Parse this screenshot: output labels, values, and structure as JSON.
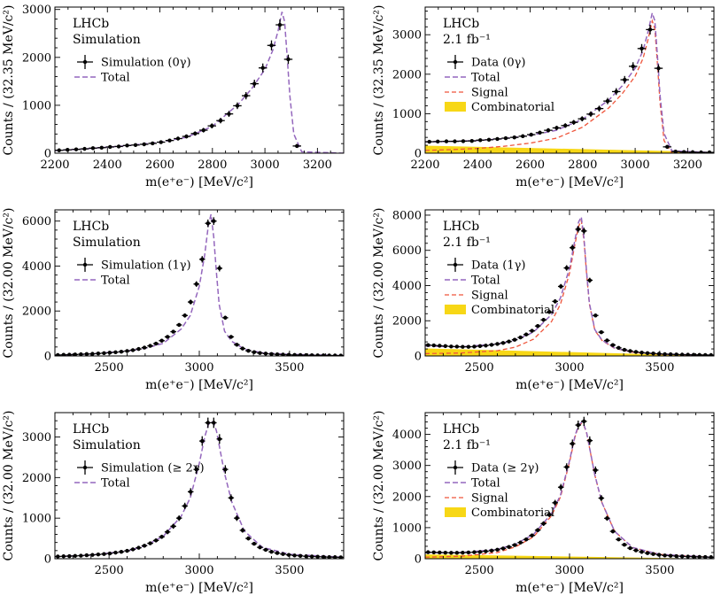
{
  "chart_data": [
    {
      "type": "scatter",
      "panel": "simulation-0gamma",
      "lhcb_label": "LHCb",
      "sub_label": "Simulation",
      "xlabel": "m(e⁺e⁻) [MeV/c²]",
      "ylabel": "Counts / (32.35 MeV/c²)",
      "xlim": [
        2200,
        3300
      ],
      "ylim": [
        0,
        3050
      ],
      "xticks": [
        2200,
        2400,
        2600,
        2800,
        3000,
        3200
      ],
      "yticks": [
        0,
        1000,
        2000,
        3000
      ],
      "legend": {
        "points": "Simulation (0γ)",
        "total": "Total"
      },
      "points": {
        "x": [
          2216,
          2248,
          2281,
          2313,
          2345,
          2378,
          2410,
          2443,
          2475,
          2507,
          2540,
          2572,
          2604,
          2637,
          2669,
          2701,
          2734,
          2766,
          2798,
          2831,
          2863,
          2895,
          2928,
          2960,
          2992,
          3025,
          3057,
          3089,
          3122
        ],
        "y": [
          60,
          70,
          80,
          90,
          105,
          115,
          130,
          140,
          160,
          170,
          185,
          205,
          230,
          265,
          305,
          350,
          410,
          480,
          570,
          680,
          820,
          990,
          1200,
          1450,
          1780,
          2250,
          2680,
          1960,
          150
        ]
      },
      "total": {
        "x": [
          2200,
          2300,
          2400,
          2500,
          2600,
          2700,
          2800,
          2900,
          2950,
          3000,
          3030,
          3050,
          3065,
          3075,
          3085,
          3095,
          3110,
          3140,
          3300
        ],
        "y": [
          55,
          85,
          125,
          170,
          230,
          330,
          560,
          1030,
          1350,
          1750,
          2150,
          2550,
          2950,
          2750,
          2000,
          1200,
          400,
          30,
          0
        ]
      }
    },
    {
      "type": "scatter",
      "panel": "data-0gamma",
      "lhcb_label": "LHCb",
      "sub_label": "2.1 fb⁻¹",
      "xlabel": "m(e⁺e⁻) [MeV/c²]",
      "ylabel": "Counts / (32.35 MeV/c²)",
      "xlim": [
        2200,
        3300
      ],
      "ylim": [
        0,
        3700
      ],
      "xticks": [
        2200,
        2400,
        2600,
        2800,
        3000,
        3200
      ],
      "yticks": [
        0,
        1000,
        2000,
        3000
      ],
      "legend": {
        "points": "Data (0γ)",
        "total": "Total",
        "signal": "Signal",
        "combinatorial": "Combinatorial"
      },
      "points": {
        "x": [
          2216,
          2248,
          2281,
          2313,
          2345,
          2378,
          2410,
          2443,
          2475,
          2507,
          2540,
          2572,
          2604,
          2637,
          2669,
          2701,
          2734,
          2766,
          2798,
          2831,
          2863,
          2895,
          2928,
          2960,
          2992,
          3025,
          3057,
          3089,
          3122,
          3154,
          3186,
          3219,
          3251,
          3283
        ],
        "y": [
          290,
          295,
          300,
          300,
          305,
          310,
          330,
          340,
          360,
          380,
          400,
          430,
          470,
          520,
          580,
          640,
          700,
          780,
          870,
          990,
          1130,
          1320,
          1560,
          1860,
          2200,
          2650,
          3130,
          2150,
          160,
          40,
          30,
          25,
          20,
          20
        ]
      },
      "total": {
        "x": [
          2200,
          2300,
          2400,
          2500,
          2600,
          2700,
          2800,
          2900,
          2950,
          3000,
          3030,
          3050,
          3065,
          3075,
          3085,
          3095,
          3110,
          3140,
          3300
        ],
        "y": [
          285,
          300,
          320,
          370,
          450,
          580,
          860,
          1350,
          1700,
          2150,
          2600,
          3100,
          3550,
          3350,
          2450,
          1450,
          500,
          60,
          15
        ]
      },
      "signal": {
        "x": [
          2200,
          2300,
          2400,
          2500,
          2600,
          2700,
          2800,
          2900,
          2950,
          3000,
          3030,
          3050,
          3065,
          3075,
          3085,
          3095,
          3110,
          3140,
          3300
        ],
        "y": [
          70,
          90,
          120,
          175,
          255,
          380,
          660,
          1150,
          1500,
          1950,
          2400,
          2900,
          3350,
          3150,
          2250,
          1260,
          320,
          0,
          0
        ]
      },
      "combinatorial": {
        "x": [
          2200,
          3300
        ],
        "y": [
          190,
          30
        ]
      }
    },
    {
      "type": "scatter",
      "panel": "simulation-1gamma",
      "lhcb_label": "LHCb",
      "sub_label": "Simulation",
      "xlabel": "m(e⁺e⁻) [MeV/c²]",
      "ylabel": "Counts / (32.00 MeV/c²)",
      "xlim": [
        2200,
        3800
      ],
      "ylim": [
        0,
        6500
      ],
      "xticks": [
        2500,
        3000,
        3500
      ],
      "yticks": [
        0,
        2000,
        4000,
        6000
      ],
      "legend": {
        "points": "Simulation (1γ)",
        "total": "Total"
      },
      "points": {
        "x": [
          2216,
          2248,
          2280,
          2312,
          2344,
          2376,
          2408,
          2440,
          2472,
          2504,
          2536,
          2568,
          2600,
          2632,
          2664,
          2696,
          2728,
          2760,
          2792,
          2824,
          2856,
          2888,
          2920,
          2952,
          2984,
          3016,
          3048,
          3080,
          3112,
          3144,
          3176,
          3208,
          3240,
          3272,
          3304,
          3336,
          3368,
          3400,
          3432,
          3464,
          3496,
          3528,
          3560,
          3592,
          3624,
          3656,
          3688,
          3720,
          3752,
          3784
        ],
        "y": [
          40,
          50,
          55,
          65,
          75,
          85,
          95,
          110,
          125,
          145,
          165,
          190,
          220,
          260,
          310,
          370,
          450,
          550,
          680,
          850,
          1080,
          1380,
          1800,
          2400,
          3200,
          4300,
          5900,
          6000,
          3900,
          1700,
          850,
          500,
          330,
          230,
          170,
          130,
          105,
          85,
          70,
          60,
          50,
          45,
          40,
          35,
          30,
          28,
          25,
          22,
          20,
          18
        ]
      },
      "total": {
        "x": [
          2200,
          2400,
          2600,
          2700,
          2800,
          2900,
          2950,
          3000,
          3030,
          3050,
          3065,
          3080,
          3095,
          3110,
          3140,
          3180,
          3250,
          3350,
          3500,
          3800
        ],
        "y": [
          35,
          90,
          220,
          340,
          560,
          1200,
          1800,
          3100,
          4500,
          5800,
          6300,
          5300,
          3700,
          2300,
          1100,
          650,
          300,
          140,
          70,
          20
        ]
      }
    },
    {
      "type": "scatter",
      "panel": "data-1gamma",
      "lhcb_label": "LHCb",
      "sub_label": "2.1 fb⁻¹",
      "xlabel": "m(e⁺e⁻) [MeV/c²]",
      "ylabel": "Counts / (32.00 MeV/c²)",
      "xlim": [
        2200,
        3800
      ],
      "ylim": [
        0,
        8300
      ],
      "xticks": [
        2500,
        3000,
        3500
      ],
      "yticks": [
        0,
        2000,
        4000,
        6000,
        8000
      ],
      "legend": {
        "points": "Data (1γ)",
        "total": "Total",
        "signal": "Signal",
        "combinatorial": "Combinatorial"
      },
      "points": {
        "x": [
          2216,
          2248,
          2280,
          2312,
          2344,
          2376,
          2408,
          2440,
          2472,
          2504,
          2536,
          2568,
          2600,
          2632,
          2664,
          2696,
          2728,
          2760,
          2792,
          2824,
          2856,
          2888,
          2920,
          2952,
          2984,
          3016,
          3048,
          3080,
          3112,
          3144,
          3176,
          3208,
          3240,
          3272,
          3304,
          3336,
          3368,
          3400,
          3432,
          3464,
          3496,
          3528,
          3560,
          3592,
          3624,
          3656,
          3688,
          3720,
          3752,
          3784
        ],
        "y": [
          620,
          600,
          580,
          560,
          540,
          530,
          520,
          520,
          530,
          560,
          590,
          630,
          680,
          740,
          820,
          920,
          1050,
          1220,
          1430,
          1700,
          2050,
          2500,
          3100,
          3950,
          5000,
          6150,
          7200,
          7100,
          4300,
          2300,
          1350,
          880,
          620,
          460,
          350,
          280,
          230,
          190,
          160,
          140,
          120,
          105,
          95,
          85,
          75,
          70,
          65,
          60,
          55,
          50
        ]
      },
      "total": {
        "x": [
          2200,
          2400,
          2600,
          2700,
          2800,
          2900,
          2950,
          3000,
          3030,
          3050,
          3065,
          3080,
          3095,
          3110,
          3140,
          3180,
          3250,
          3350,
          3500,
          3800
        ],
        "y": [
          560,
          520,
          680,
          900,
          1350,
          2350,
          3300,
          5000,
          6600,
          7600,
          7900,
          6700,
          4700,
          3000,
          1500,
          900,
          450,
          220,
          110,
          40
        ]
      },
      "signal": {
        "x": [
          2200,
          2400,
          2600,
          2700,
          2800,
          2900,
          2950,
          3000,
          3030,
          3050,
          3065,
          3080,
          3095,
          3110,
          3140,
          3180,
          3250,
          3350,
          3500,
          3800
        ],
        "y": [
          130,
          170,
          300,
          500,
          950,
          1950,
          2950,
          4700,
          6350,
          7350,
          7700,
          6550,
          4600,
          2950,
          1460,
          880,
          430,
          210,
          100,
          35
        ]
      },
      "combinatorial": {
        "x": [
          2200,
          3800
        ],
        "y": [
          430,
          10
        ]
      }
    },
    {
      "type": "scatter",
      "panel": "simulation-ge2gamma",
      "lhcb_label": "LHCb",
      "sub_label": "Simulation",
      "xlabel": "m(e⁺e⁻) [MeV/c²]",
      "ylabel": "Counts / (32.00 MeV/c²)",
      "xlim": [
        2200,
        3800
      ],
      "ylim": [
        0,
        3600
      ],
      "xticks": [
        2500,
        3000,
        3500
      ],
      "yticks": [
        0,
        1000,
        2000,
        3000
      ],
      "legend": {
        "points": "Simulation (≥ 2γ)",
        "total": "Total"
      },
      "points": {
        "x": [
          2216,
          2248,
          2280,
          2312,
          2344,
          2376,
          2408,
          2440,
          2472,
          2504,
          2536,
          2568,
          2600,
          2632,
          2664,
          2696,
          2728,
          2760,
          2792,
          2824,
          2856,
          2888,
          2920,
          2952,
          2984,
          3016,
          3048,
          3080,
          3112,
          3144,
          3176,
          3208,
          3240,
          3272,
          3304,
          3336,
          3368,
          3400,
          3432,
          3464,
          3496,
          3528,
          3560,
          3592,
          3624,
          3656,
          3688,
          3720,
          3752,
          3784
        ],
        "y": [
          55,
          60,
          65,
          70,
          75,
          85,
          95,
          105,
          115,
          130,
          150,
          170,
          195,
          230,
          270,
          320,
          380,
          450,
          540,
          660,
          800,
          1000,
          1300,
          1650,
          2200,
          2900,
          3350,
          3350,
          2950,
          2200,
          1500,
          1000,
          700,
          500,
          370,
          280,
          220,
          170,
          140,
          115,
          95,
          80,
          70,
          60,
          55,
          50,
          45,
          40,
          38,
          35
        ]
      },
      "total": {
        "x": [
          2200,
          2400,
          2600,
          2700,
          2800,
          2900,
          2950,
          3000,
          3030,
          3050,
          3065,
          3080,
          3095,
          3110,
          3140,
          3180,
          3250,
          3350,
          3500,
          3800
        ],
        "y": [
          50,
          90,
          190,
          320,
          550,
          1050,
          1500,
          2350,
          3000,
          3300,
          3380,
          3350,
          3150,
          2800,
          2100,
          1400,
          680,
          280,
          110,
          35
        ]
      }
    },
    {
      "type": "scatter",
      "panel": "data-ge2gamma",
      "lhcb_label": "LHCb",
      "sub_label": "2.1 fb⁻¹",
      "xlabel": "m(e⁺e⁻) [MeV/c²]",
      "ylabel": "Counts / (32.00 MeV/c²)",
      "xlim": [
        2200,
        3800
      ],
      "ylim": [
        0,
        4700
      ],
      "xticks": [
        2500,
        3000,
        3500
      ],
      "yticks": [
        0,
        1000,
        2000,
        3000,
        4000
      ],
      "legend": {
        "points": "Data (≥ 2γ)",
        "total": "Total",
        "signal": "Signal",
        "combinatorial": "Combinatorial"
      },
      "points": {
        "x": [
          2216,
          2248,
          2280,
          2312,
          2344,
          2376,
          2408,
          2440,
          2472,
          2504,
          2536,
          2568,
          2600,
          2632,
          2664,
          2696,
          2728,
          2760,
          2792,
          2824,
          2856,
          2888,
          2920,
          2952,
          2984,
          3016,
          3048,
          3080,
          3112,
          3144,
          3176,
          3208,
          3240,
          3272,
          3304,
          3336,
          3368,
          3400,
          3432,
          3464,
          3496,
          3528,
          3560,
          3592,
          3624,
          3656,
          3688,
          3720,
          3752,
          3784
        ],
        "y": [
          210,
          205,
          200,
          195,
          190,
          190,
          195,
          200,
          210,
          220,
          240,
          260,
          290,
          330,
          380,
          440,
          520,
          620,
          750,
          920,
          1130,
          1420,
          1800,
          2300,
          2950,
          3700,
          4300,
          4420,
          3800,
          2850,
          1950,
          1300,
          880,
          620,
          450,
          340,
          270,
          220,
          180,
          150,
          125,
          105,
          95,
          85,
          75,
          70,
          65,
          60,
          55,
          50
        ]
      },
      "total": {
        "x": [
          2200,
          2400,
          2600,
          2700,
          2800,
          2900,
          2950,
          3000,
          3030,
          3050,
          3065,
          3080,
          3095,
          3110,
          3140,
          3180,
          3250,
          3350,
          3500,
          3800
        ],
        "y": [
          190,
          200,
          300,
          470,
          780,
          1450,
          2050,
          3150,
          3950,
          4300,
          4380,
          4300,
          4050,
          3600,
          2700,
          1800,
          880,
          360,
          140,
          45
        ]
      },
      "signal": {
        "x": [
          2200,
          2400,
          2600,
          2700,
          2800,
          2900,
          2950,
          3000,
          3030,
          3050,
          3065,
          3080,
          3095,
          3110,
          3140,
          3180,
          3250,
          3350,
          3500,
          3800
        ],
        "y": [
          50,
          80,
          200,
          380,
          700,
          1380,
          1990,
          3100,
          3910,
          4270,
          4350,
          4280,
          4030,
          3590,
          2690,
          1795,
          878,
          358,
          138,
          45
        ]
      },
      "combinatorial": {
        "x": [
          2200,
          3800
        ],
        "y": [
          140,
          0
        ]
      }
    }
  ],
  "colors": {
    "points": "#000000",
    "total": "#9467bd",
    "signal": "#ef553b",
    "combinatorial": "#f7d716"
  }
}
